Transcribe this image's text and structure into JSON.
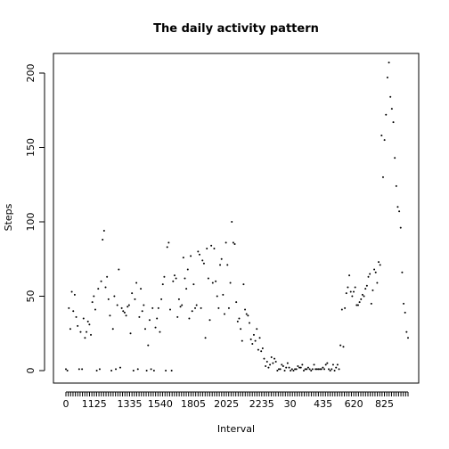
{
  "chart_data": {
    "type": "scatter",
    "title": "The daily activity pattern",
    "xlabel": "Interval",
    "ylabel": "Steps",
    "ylim": [
      0,
      210
    ],
    "yticks": [
      0,
      50,
      100,
      150,
      200
    ],
    "x_tick_labels": [
      {
        "index": 0,
        "label": "0"
      },
      {
        "index": 12,
        "label": "1125"
      },
      {
        "index": 27,
        "label": "1335"
      },
      {
        "index": 40,
        "label": "1540"
      },
      {
        "index": 54,
        "label": "1805"
      },
      {
        "index": 68,
        "label": "2025"
      },
      {
        "index": 83,
        "label": "2235"
      },
      {
        "index": 95,
        "label": "30"
      },
      {
        "index": 109,
        "label": "435"
      },
      {
        "index": 122,
        "label": "620"
      },
      {
        "index": 135,
        "label": "825"
      }
    ],
    "x_count": 146,
    "grid": false,
    "legend": "none",
    "series": [
      {
        "values": [
          1,
          0,
          42,
          28,
          53,
          40,
          51,
          36,
          30,
          1,
          26,
          1,
          35,
          22,
          26,
          33,
          31,
          24,
          46,
          50,
          41,
          0,
          55,
          1,
          60,
          88,
          94,
          56,
          63,
          48,
          37,
          0,
          28,
          50,
          1,
          44,
          68,
          2,
          42,
          40,
          39,
          37,
          43,
          44,
          25,
          52,
          0,
          48,
          59,
          1,
          36,
          55,
          40,
          44,
          28,
          0,
          17,
          34,
          1,
          42,
          0,
          29,
          35,
          42,
          26,
          48,
          58,
          63,
          0,
          83,
          86,
          41,
          0,
          60,
          64,
          62,
          36,
          48,
          43,
          44,
          76,
          62,
          55,
          68,
          35,
          77,
          40,
          58,
          42,
          44,
          80,
          78,
          42,
          74,
          72,
          22,
          82,
          62,
          34,
          84,
          59,
          82,
          60,
          50,
          42,
          71,
          75,
          51,
          38,
          86,
          71,
          42,
          59,
          100,
          86,
          85,
          46,
          33,
          35,
          28,
          20,
          58,
          41,
          38,
          37,
          32,
          21,
          18,
          24,
          20,
          28,
          14,
          22,
          13,
          15,
          8,
          3,
          6,
          2,
          4,
          9,
          5,
          8,
          6,
          0,
          1,
          1,
          4,
          3,
          0,
          2,
          5,
          2,
          0,
          1,
          0,
          1,
          1,
          3,
          2,
          2,
          4,
          0,
          1,
          1,
          2,
          1,
          0,
          1,
          4,
          1,
          1,
          1,
          1,
          1,
          2,
          1,
          4,
          5,
          1,
          0,
          1,
          4,
          0,
          2,
          4,
          1,
          17,
          41,
          16,
          42,
          52,
          56,
          64,
          53,
          50,
          53,
          56,
          44,
          44,
          46,
          48,
          51,
          50,
          55,
          57,
          63,
          65,
          45,
          54,
          68,
          66,
          59,
          73,
          71,
          158,
          130,
          155,
          172,
          197,
          207,
          184,
          176,
          167,
          143,
          124,
          110,
          107,
          96,
          66,
          45,
          39,
          26,
          22
        ],
        "x_index_scale": 0.6666
      }
    ]
  }
}
